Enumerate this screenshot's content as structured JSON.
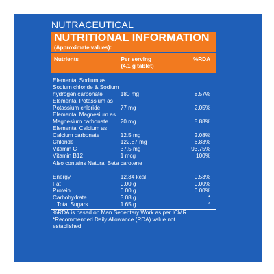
{
  "header": {
    "category": "NUTRACEUTICAL",
    "title": "NUTRITIONAL INFORMATION",
    "subtitle": "(Approximate values):"
  },
  "table": {
    "columns": [
      "Nutrients",
      "Per serving\n(4.1 g tablet)",
      "%RDA"
    ],
    "col_nutrients": "Nutrients",
    "col_serving_line1": "Per serving",
    "col_serving_line2": "(4.1 g tablet)",
    "col_rda": "%RDA",
    "rows": [
      {
        "lines": [
          "Elemental Sodium as",
          "Sodium chloride & Sodium",
          "hydrogen carbonate"
        ],
        "value": "180 mg",
        "rda": "8.57%"
      },
      {
        "lines": [
          "Elemental Potassium as",
          "Potassium chloride"
        ],
        "value": "77 mg",
        "rda": "2.05%"
      },
      {
        "lines": [
          "Elemental Magnesium as",
          "Magnesium carbonate"
        ],
        "value": "20 mg",
        "rda": "5.88%"
      },
      {
        "lines": [
          "Elemental Calcium as",
          "Calcium carbonate"
        ],
        "value": "12.5 mg",
        "rda": "2.08%"
      },
      {
        "lines": [
          "Chloride"
        ],
        "value": "122.87 mg",
        "rda": "6.83%"
      },
      {
        "lines": [
          "Vitamin C"
        ],
        "value": "37.5 mg",
        "rda": "93.75%"
      },
      {
        "lines": [
          "Vitamin B12"
        ],
        "value": "1 mcg",
        "rda": "100%"
      }
    ],
    "also_contains": "Also contains Natural Beta carotene",
    "energy_rows": [
      {
        "name": "Energy",
        "value": "12.34 kcal",
        "rda": "0.53%"
      },
      {
        "name": "Fat",
        "value": "0.00 g",
        "rda": "0.00%"
      },
      {
        "name": "Protein",
        "value": "0.00 g",
        "rda": "0.00%"
      },
      {
        "name": "Carbohydrate",
        "value": "3.08 g",
        "rda": "*"
      },
      {
        "name": "Total Sugars",
        "value": "1.65 g",
        "rda": "*"
      }
    ]
  },
  "notes": {
    "line1": "%RDA is based on Man Sedentary Work as per ICMR",
    "line2": "*Recommended Daily Allowance (RDA) value not",
    "line3": "established."
  },
  "colors": {
    "panel": "#1f5fb8",
    "accent": "#f27a1f",
    "text": "#ffffff"
  }
}
